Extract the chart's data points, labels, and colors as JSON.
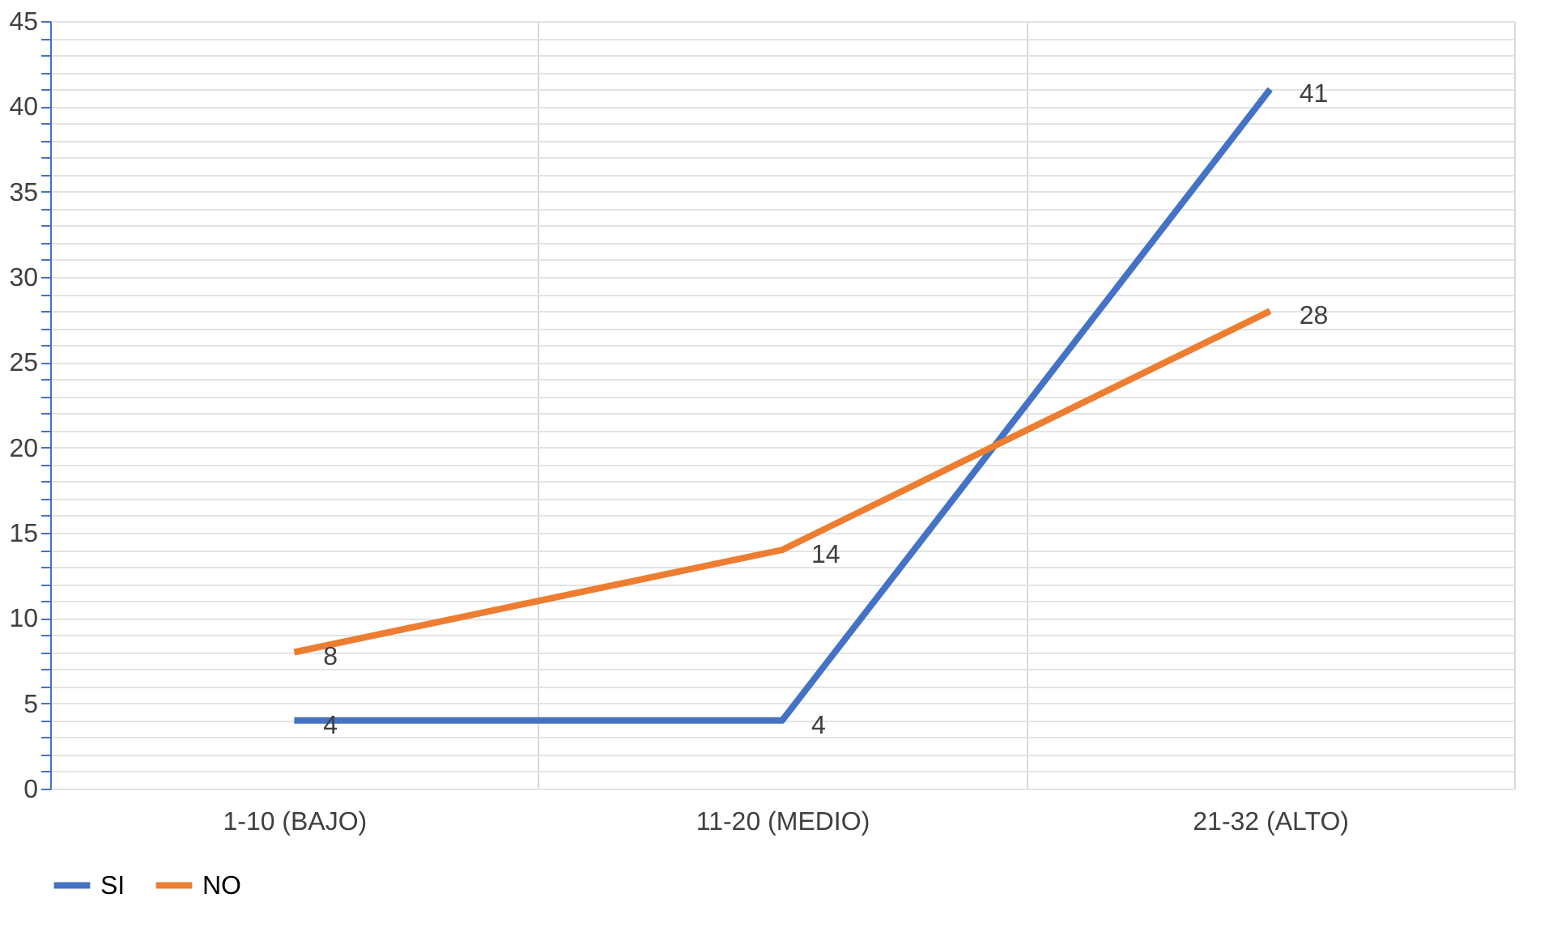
{
  "chart_data": {
    "type": "line",
    "categories": [
      "1-10 (BAJO)",
      "11-20 (MEDIO)",
      "21-32 (ALTO)"
    ],
    "series": [
      {
        "name": "SI",
        "color": "#4472c4",
        "values": [
          4,
          4,
          41
        ]
      },
      {
        "name": "NO",
        "color": "#ed7d31",
        "values": [
          8,
          14,
          28
        ]
      }
    ],
    "ylim": [
      0,
      45
    ],
    "yticks": [
      0,
      {
        "value": 1,
        "label": null
      },
      {
        "value": 2,
        "label": null
      },
      {
        "value": 3,
        "label": null
      },
      {
        "value": 4,
        "label": null
      },
      5,
      {
        "value": 6,
        "label": null
      },
      {
        "value": 7,
        "label": null
      },
      {
        "value": 8,
        "label": null
      },
      {
        "value": 9,
        "label": null
      },
      10,
      {
        "value": 11,
        "label": null
      },
      {
        "value": 12,
        "label": null
      },
      {
        "value": 13,
        "label": null
      },
      {
        "value": 14,
        "label": null
      },
      15,
      {
        "value": 16,
        "label": null
      },
      {
        "value": 17,
        "label": null
      },
      {
        "value": 18,
        "label": null
      },
      {
        "value": 19,
        "label": null
      },
      20,
      {
        "value": 21,
        "label": null
      },
      {
        "value": 22,
        "label": null
      },
      {
        "value": 23,
        "label": null
      },
      {
        "value": 24,
        "label": null
      },
      25,
      {
        "value": 26,
        "label": null
      },
      {
        "value": 27,
        "label": null
      },
      {
        "value": 28,
        "label": null
      },
      {
        "value": 29,
        "label": null
      },
      30,
      {
        "value": 31,
        "label": null
      },
      {
        "value": 32,
        "label": null
      },
      {
        "value": 33,
        "label": null
      },
      {
        "value": 34,
        "label": null
      },
      35,
      {
        "value": 36,
        "label": null
      },
      {
        "value": 37,
        "label": null
      },
      {
        "value": 38,
        "label": null
      },
      {
        "value": 39,
        "label": null
      },
      40,
      {
        "value": 41,
        "label": null
      },
      {
        "value": 42,
        "label": null
      },
      {
        "value": 43,
        "label": null
      },
      {
        "value": 44,
        "label": null
      },
      45
    ],
    "grid": true,
    "legend": "bottom",
    "marker": "none",
    "line_style": "solid",
    "data_labels": true
  }
}
